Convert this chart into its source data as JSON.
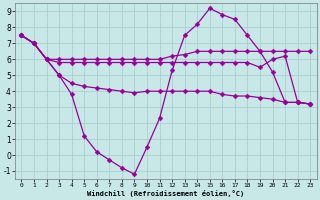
{
  "xlabel": "Windchill (Refroidissement éolien,°C)",
  "background_color": "#c8e8e8",
  "grid_color": "#a8d0d0",
  "line_color": "#990099",
  "xlim": [
    -0.5,
    23.5
  ],
  "ylim": [
    -1.5,
    9.5
  ],
  "xticks": [
    0,
    1,
    2,
    3,
    4,
    5,
    6,
    7,
    8,
    9,
    10,
    11,
    12,
    13,
    14,
    15,
    16,
    17,
    18,
    19,
    20,
    21,
    22,
    23
  ],
  "yticks": [
    -1,
    0,
    1,
    2,
    3,
    4,
    5,
    6,
    7,
    8,
    9
  ],
  "series": [
    {
      "x": [
        0,
        1,
        2,
        3,
        4,
        5,
        6,
        7,
        8,
        9,
        10,
        11,
        12,
        13,
        14,
        15,
        16,
        17,
        18,
        19,
        20,
        21,
        22,
        23
      ],
      "y": [
        7.5,
        7.0,
        6.0,
        6.0,
        6.0,
        6.0,
        6.0,
        6.0,
        6.0,
        6.0,
        6.0,
        6.0,
        6.2,
        6.3,
        6.5,
        6.5,
        6.5,
        6.5,
        6.5,
        6.5,
        6.5,
        6.5,
        6.5,
        6.5
      ]
    },
    {
      "x": [
        0,
        1,
        2,
        3,
        4,
        5,
        6,
        7,
        8,
        9,
        10,
        11,
        12,
        13,
        14,
        15,
        16,
        17,
        18,
        19,
        20,
        21,
        22,
        23
      ],
      "y": [
        7.5,
        7.0,
        6.0,
        5.0,
        3.8,
        1.2,
        0.2,
        -0.3,
        -0.8,
        -1.2,
        0.5,
        2.3,
        5.3,
        7.5,
        8.2,
        9.2,
        8.8,
        8.5,
        7.5,
        6.5,
        5.2,
        3.3,
        3.3,
        3.2
      ]
    },
    {
      "x": [
        0,
        1,
        2,
        3,
        4,
        5,
        6,
        7,
        8,
        9,
        10,
        11,
        12,
        13,
        14,
        15,
        16,
        17,
        18,
        19,
        20,
        21,
        22,
        23
      ],
      "y": [
        7.5,
        7.0,
        6.0,
        5.0,
        4.5,
        4.3,
        4.2,
        4.1,
        4.0,
        3.9,
        4.0,
        4.0,
        4.0,
        4.0,
        4.0,
        4.0,
        3.8,
        3.7,
        3.7,
        3.6,
        3.5,
        3.3,
        3.3,
        3.2
      ]
    },
    {
      "x": [
        0,
        1,
        2,
        3,
        4,
        5,
        6,
        7,
        8,
        9,
        10,
        11,
        12,
        13,
        14,
        15,
        16,
        17,
        18,
        19,
        20,
        21,
        22,
        23
      ],
      "y": [
        7.5,
        7.0,
        6.0,
        5.8,
        5.8,
        5.8,
        5.8,
        5.8,
        5.8,
        5.8,
        5.8,
        5.8,
        5.8,
        5.8,
        5.8,
        5.8,
        5.8,
        5.8,
        5.8,
        5.5,
        6.0,
        6.2,
        3.3,
        3.2
      ]
    }
  ],
  "marker": "D",
  "markersize": 2.5,
  "linewidth": 0.9
}
